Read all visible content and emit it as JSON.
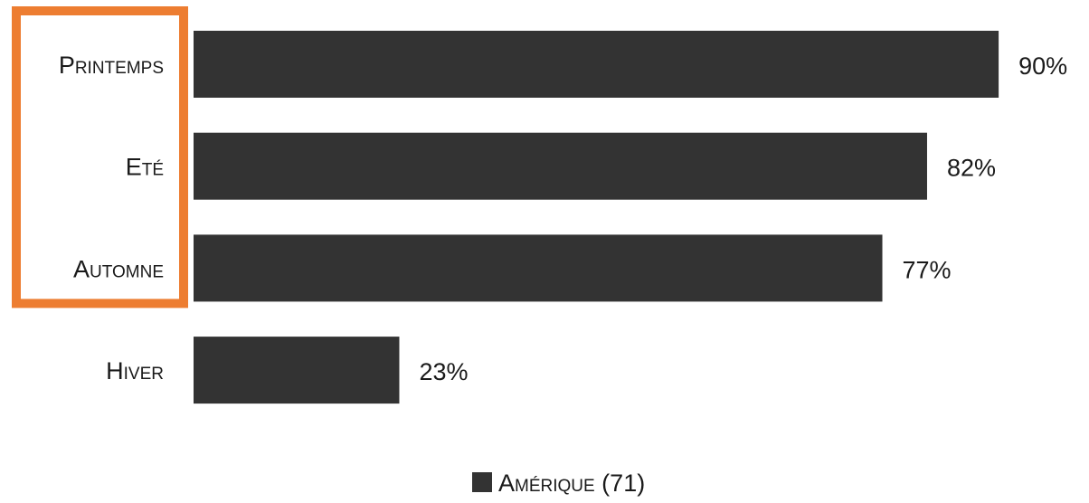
{
  "chart_data": {
    "type": "bar",
    "orientation": "horizontal",
    "categories": [
      "Printemps",
      "Eté",
      "Automne",
      "Hiver"
    ],
    "series": [
      {
        "name": "Amérique (71)",
        "values": [
          90,
          82,
          77,
          23
        ],
        "value_labels": [
          "90%",
          "82%",
          "77%",
          "23%"
        ]
      }
    ],
    "xlim": [
      0,
      100
    ],
    "grid": false,
    "legend": "bottom-center",
    "highlight": {
      "categories": [
        "Printemps",
        "Eté",
        "Automne"
      ],
      "color": "#ED7D31"
    },
    "colors": {
      "bar": "#333333",
      "text": "#1a1a1a"
    }
  }
}
